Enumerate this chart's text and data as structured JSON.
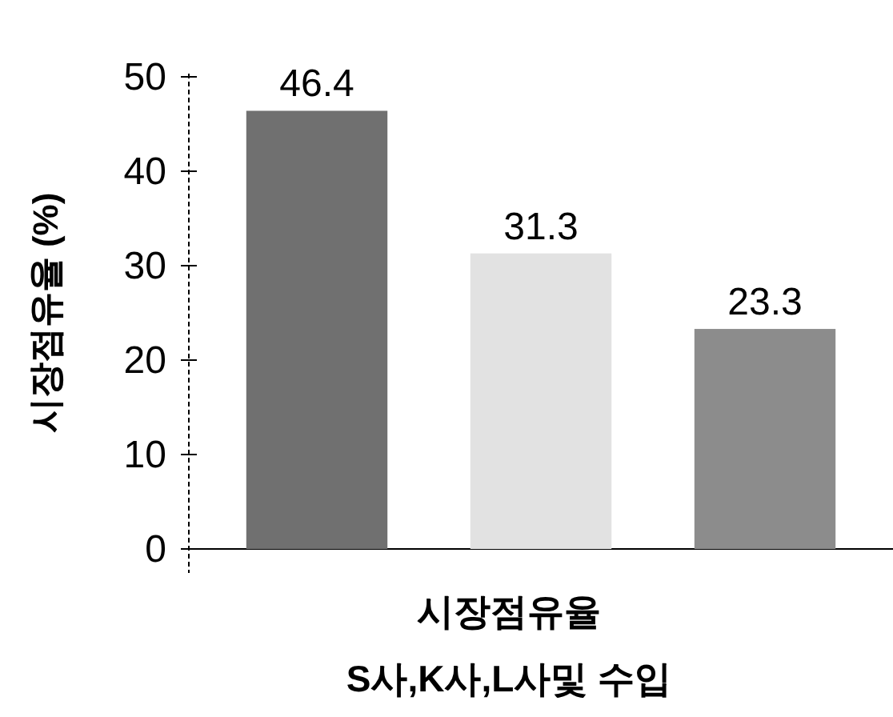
{
  "chart_data": {
    "type": "bar",
    "ylabel": "시장점유율 (%)",
    "xlabel": "시장점유율",
    "annotations": [
      "S사,K사,L사및 수입"
    ],
    "categories": [
      null,
      null,
      null
    ],
    "values": [
      46.4,
      31.3,
      23.3
    ],
    "colors": [
      "#707070",
      "#e2e2e2",
      "#8c8c8c"
    ],
    "ylim": [
      0,
      50
    ],
    "yticks": [
      0,
      10,
      20,
      30,
      40,
      50
    ],
    "data_labels": true
  }
}
